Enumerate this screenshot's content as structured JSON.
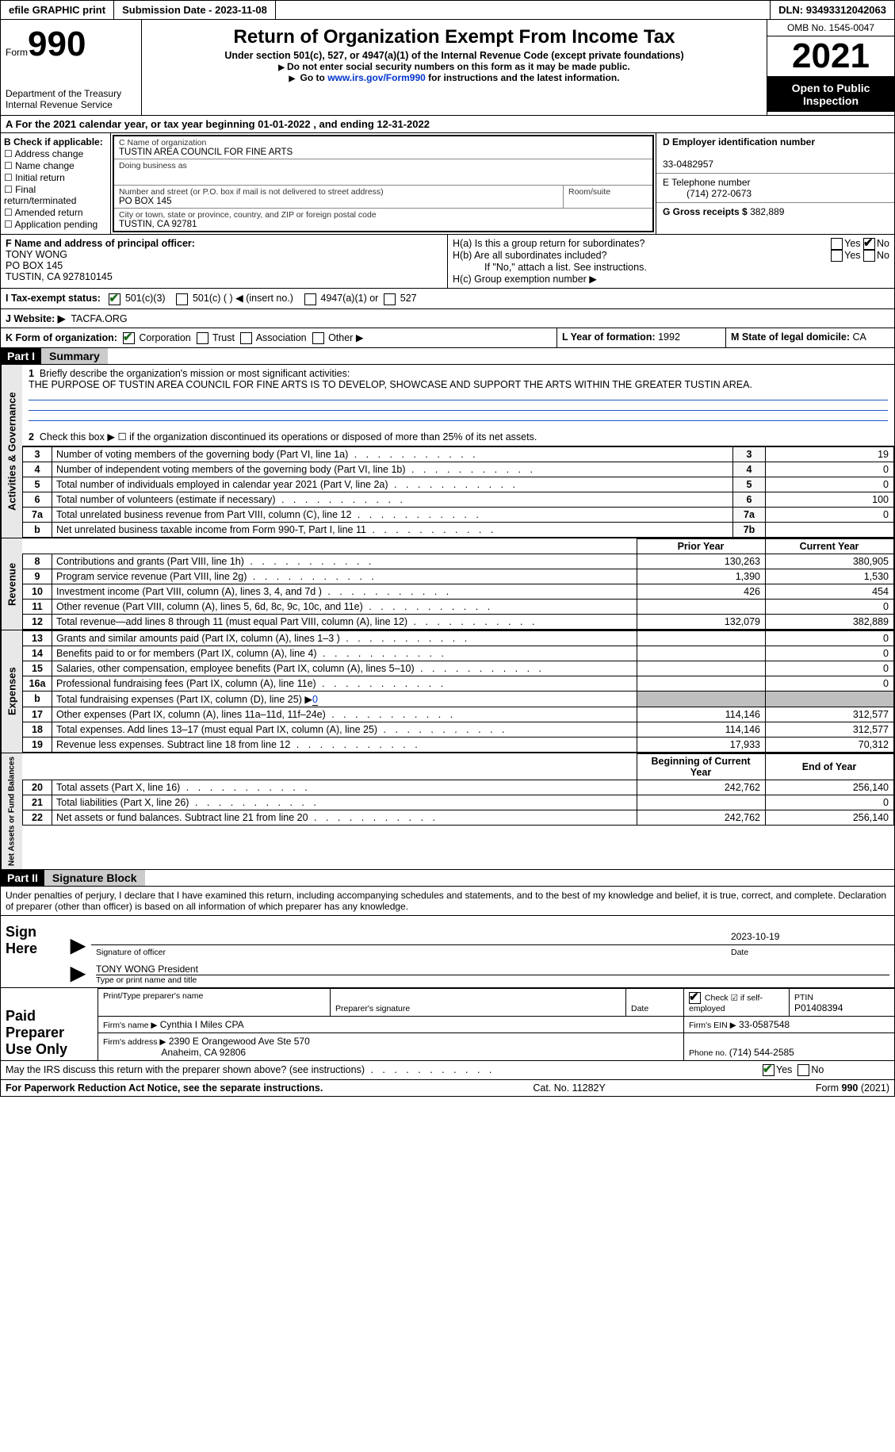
{
  "topbar": {
    "efile": "efile GRAPHIC print",
    "sub_label": "Submission Date - ",
    "sub_date": "2023-11-08",
    "dln_label": "DLN: ",
    "dln": "93493312042063"
  },
  "header": {
    "form_small": "Form",
    "form_big": "990",
    "title": "Return of Organization Exempt From Income Tax",
    "subtitle": "Under section 501(c), 527, or 4947(a)(1) of the Internal Revenue Code (except private foundations)",
    "hint1": "Do not enter social security numbers on this form as it may be made public.",
    "hint2_a": "Go to ",
    "hint2_link": "www.irs.gov/Form990",
    "hint2_b": " for instructions and the latest information.",
    "dept": "Department of the Treasury",
    "irs": "Internal Revenue Service",
    "omb": "OMB No. 1545-0047",
    "year": "2021",
    "badge": "Open to Public Inspection"
  },
  "row_a": {
    "text_a": "A For the 2021 calendar year, or tax year beginning ",
    "begin": "01-01-2022",
    "mid": " , and ending ",
    "end": "12-31-2022"
  },
  "col_b": {
    "hdr": "B Check if applicable:",
    "opts": [
      "Address change",
      "Name change",
      "Initial return",
      "Final return/terminated",
      "Amended return",
      "Application pending"
    ]
  },
  "org": {
    "c_label": "C Name of organization",
    "c_name": "TUSTIN AREA COUNCIL FOR FINE ARTS",
    "dba_label": "Doing business as",
    "dba": "",
    "addr_label": "Number and street (or P.O. box if mail is not delivered to street address)",
    "room_label": "Room/suite",
    "addr": "PO BOX 145",
    "city_label": "City or town, state or province, country, and ZIP or foreign postal code",
    "city": "TUSTIN, CA  92781"
  },
  "right_info": {
    "d_label": "D Employer identification number",
    "d_val": "33-0482957",
    "e_label": "E Telephone number",
    "e_val": "(714) 272-0673",
    "g_label": "G Gross receipts $ ",
    "g_val": "382,889"
  },
  "officer": {
    "f_label": "F Name and address of principal officer:",
    "name": "TONY WONG",
    "addr1": "PO BOX 145",
    "addr2": "TUSTIN, CA  927810145"
  },
  "h_block": {
    "ha": "H(a)  Is this a group return for subordinates?",
    "hb": "H(b)  Are all subordinates included?",
    "hb_note": "If \"No,\" attach a list. See instructions.",
    "hc": "H(c)  Group exemption number ▶",
    "yes": "Yes",
    "no": "No"
  },
  "row_i": {
    "label": "I  Tax-exempt status:",
    "o1": "501(c)(3)",
    "o2": "501(c) (   ) ◀ (insert no.)",
    "o3": "4947(a)(1) or",
    "o4": "527"
  },
  "row_j": {
    "label": "J  Website: ▶",
    "val": "TACFA.ORG"
  },
  "row_k": {
    "label": "K Form of organization:",
    "o1": "Corporation",
    "o2": "Trust",
    "o3": "Association",
    "o4": "Other ▶"
  },
  "row_l": {
    "label": "L Year of formation: ",
    "val": "1992"
  },
  "row_m": {
    "label": "M State of legal domicile: ",
    "val": "CA"
  },
  "part1": {
    "num": "Part I",
    "title": "Summary",
    "q1a": "Briefly describe the organization's mission or most significant activities:",
    "q1b": "THE PURPOSE OF TUSTIN AREA COUNCIL FOR FINE ARTS IS TO DEVELOP, SHOWCASE AND SUPPORT THE ARTS WITHIN THE GREATER TUSTIN AREA.",
    "q2": "Check this box ▶ ☐ if the organization discontinued its operations or disposed of more than 25% of its net assets.",
    "vtab_ag": "Activities & Governance",
    "vtab_rev": "Revenue",
    "vtab_exp": "Expenses",
    "vtab_net": "Net Assets or Fund Balances",
    "lines_gov": [
      {
        "n": "3",
        "d": "Number of voting members of the governing body (Part VI, line 1a)",
        "ln": "3",
        "v": "19"
      },
      {
        "n": "4",
        "d": "Number of independent voting members of the governing body (Part VI, line 1b)",
        "ln": "4",
        "v": "0"
      },
      {
        "n": "5",
        "d": "Total number of individuals employed in calendar year 2021 (Part V, line 2a)",
        "ln": "5",
        "v": "0"
      },
      {
        "n": "6",
        "d": "Total number of volunteers (estimate if necessary)",
        "ln": "6",
        "v": "100"
      },
      {
        "n": "7a",
        "d": "Total unrelated business revenue from Part VIII, column (C), line 12",
        "ln": "7a",
        "v": "0"
      },
      {
        "n": "b",
        "d": "Net unrelated business taxable income from Form 990-T, Part I, line 11",
        "ln": "7b",
        "v": ""
      }
    ],
    "col_prior": "Prior Year",
    "col_curr": "Current Year",
    "lines_rev": [
      {
        "n": "8",
        "d": "Contributions and grants (Part VIII, line 1h)",
        "p": "130,263",
        "c": "380,905"
      },
      {
        "n": "9",
        "d": "Program service revenue (Part VIII, line 2g)",
        "p": "1,390",
        "c": "1,530"
      },
      {
        "n": "10",
        "d": "Investment income (Part VIII, column (A), lines 3, 4, and 7d )",
        "p": "426",
        "c": "454"
      },
      {
        "n": "11",
        "d": "Other revenue (Part VIII, column (A), lines 5, 6d, 8c, 9c, 10c, and 11e)",
        "p": "",
        "c": "0"
      },
      {
        "n": "12",
        "d": "Total revenue—add lines 8 through 11 (must equal Part VIII, column (A), line 12)",
        "p": "132,079",
        "c": "382,889"
      }
    ],
    "lines_exp": [
      {
        "n": "13",
        "d": "Grants and similar amounts paid (Part IX, column (A), lines 1–3 )",
        "p": "",
        "c": "0"
      },
      {
        "n": "14",
        "d": "Benefits paid to or for members (Part IX, column (A), line 4)",
        "p": "",
        "c": "0"
      },
      {
        "n": "15",
        "d": "Salaries, other compensation, employee benefits (Part IX, column (A), lines 5–10)",
        "p": "",
        "c": "0"
      },
      {
        "n": "16a",
        "d": "Professional fundraising fees (Part IX, column (A), line 11e)",
        "p": "",
        "c": "0"
      }
    ],
    "line_16b": {
      "n": "b",
      "d_a": "Total fundraising expenses (Part IX, column (D), line 25) ▶",
      "d_val": "0"
    },
    "lines_exp2": [
      {
        "n": "17",
        "d": "Other expenses (Part IX, column (A), lines 11a–11d, 11f–24e)",
        "p": "114,146",
        "c": "312,577"
      },
      {
        "n": "18",
        "d": "Total expenses. Add lines 13–17 (must equal Part IX, column (A), line 25)",
        "p": "114,146",
        "c": "312,577"
      },
      {
        "n": "19",
        "d": "Revenue less expenses. Subtract line 18 from line 12",
        "p": "17,933",
        "c": "70,312"
      }
    ],
    "col_begin": "Beginning of Current Year",
    "col_end": "End of Year",
    "lines_net": [
      {
        "n": "20",
        "d": "Total assets (Part X, line 16)",
        "p": "242,762",
        "c": "256,140"
      },
      {
        "n": "21",
        "d": "Total liabilities (Part X, line 26)",
        "p": "",
        "c": "0"
      },
      {
        "n": "22",
        "d": "Net assets or fund balances. Subtract line 21 from line 20",
        "p": "242,762",
        "c": "256,140"
      }
    ]
  },
  "part2": {
    "num": "Part II",
    "title": "Signature Block",
    "decl": "Under penalties of perjury, I declare that I have examined this return, including accompanying schedules and statements, and to the best of my knowledge and belief, it is true, correct, and complete. Declaration of preparer (other than officer) is based on all information of which preparer has any knowledge.",
    "sign_here": "Sign Here",
    "sig_officer": "Signature of officer",
    "sig_date": "2023-10-19",
    "date_label": "Date",
    "name_title": "TONY WONG  President",
    "type_label": "Type or print name and title",
    "paid": "Paid Preparer Use Only",
    "prep_name_label": "Print/Type preparer's name",
    "prep_sig_label": "Preparer's signature",
    "prep_date_label": "Date",
    "check_if": "Check ☑ if self-employed",
    "ptin_label": "PTIN",
    "ptin": "P01408394",
    "firm_name_label": "Firm's name    ▶",
    "firm_name": "Cynthia I Miles CPA",
    "firm_ein_label": "Firm's EIN ▶",
    "firm_ein": "33-0587548",
    "firm_addr_label": "Firm's address ▶",
    "firm_addr1": "2390 E Orangewood Ave Ste 570",
    "firm_addr2": "Anaheim, CA  92806",
    "phone_label": "Phone no. ",
    "phone": "(714) 544-2585",
    "may_irs": "May the IRS discuss this return with the preparer shown above? (see instructions)",
    "yes": "Yes",
    "no": "No"
  },
  "footer": {
    "left": "For Paperwork Reduction Act Notice, see the separate instructions.",
    "mid": "Cat. No. 11282Y",
    "right": "Form 990 (2021)"
  }
}
